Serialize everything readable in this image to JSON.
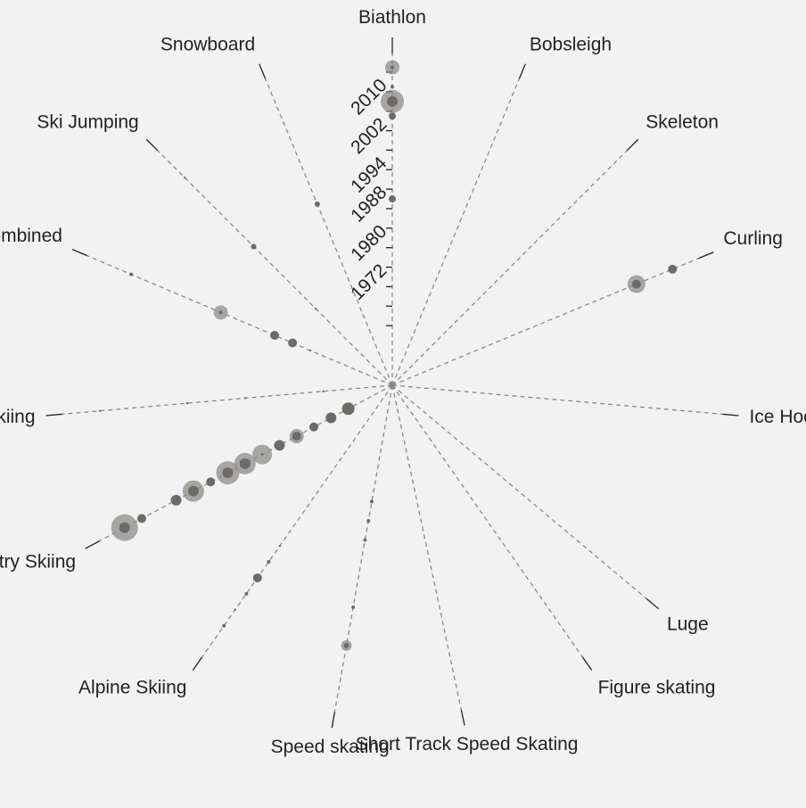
{
  "chart_data": {
    "type": "scatter",
    "layout": "radial",
    "year_axis": {
      "ticks": [
        1972,
        1980,
        1988,
        1994,
        2002,
        2010
      ],
      "range": [
        1956,
        2014
      ]
    },
    "sports": [
      {
        "name": "Biathlon",
        "angle": 0,
        "points": [
          {
            "year": 1976,
            "size": 1
          },
          {
            "year": 1986,
            "size": 4
          },
          {
            "year": 2003,
            "size": 4
          },
          {
            "year": 2006,
            "size": 6,
            "halo": 7
          },
          {
            "year": 2009,
            "size": 2
          },
          {
            "year": 2013,
            "size": 2,
            "halo": 6
          }
        ]
      },
      {
        "name": "Bobsleigh",
        "angle": 22.5,
        "points": []
      },
      {
        "name": "Skeleton",
        "angle": 45,
        "points": []
      },
      {
        "name": "Curling",
        "angle": 67.5,
        "points": [
          {
            "year": 2010,
            "size": 5
          },
          {
            "year": 2002,
            "size": 5,
            "halo": 5
          }
        ]
      },
      {
        "name": "Ice Hockey",
        "angle": 95,
        "points": []
      },
      {
        "name": "Luge",
        "angle": 130,
        "points": []
      },
      {
        "name": "Figure skating",
        "angle": 145,
        "points": []
      },
      {
        "name": "Short Track Speed Skating",
        "angle": 168,
        "points": []
      },
      {
        "name": "Speed skating",
        "angle": 190,
        "points": [
          {
            "year": 1972,
            "size": 2
          },
          {
            "year": 1976,
            "size": 2
          },
          {
            "year": 1980,
            "size": 2
          },
          {
            "year": 1994,
            "size": 2
          },
          {
            "year": 2002,
            "size": 3,
            "halo": 3
          }
        ]
      },
      {
        "name": "Alpine Skiing",
        "angle": 215,
        "points": [
          {
            "year": 1988,
            "size": 1
          },
          {
            "year": 1992,
            "size": 2
          },
          {
            "year": 1996,
            "size": 5
          },
          {
            "year": 2000,
            "size": 2
          },
          {
            "year": 2004,
            "size": 1
          },
          {
            "year": 2008,
            "size": 2
          }
        ]
      },
      {
        "name": "Cross Country Skiing",
        "angle": 242,
        "points": [
          {
            "year": 1958,
            "size": 7
          },
          {
            "year": 1962,
            "size": 6
          },
          {
            "year": 1966,
            "size": 5
          },
          {
            "year": 1970,
            "size": 5,
            "halo": 3
          },
          {
            "year": 1974,
            "size": 6
          },
          {
            "year": 1978,
            "size": 1,
            "halo": 10
          },
          {
            "year": 1982,
            "size": 6,
            "halo": 6
          },
          {
            "year": 1986,
            "size": 6,
            "halo": 7
          },
          {
            "year": 1990,
            "size": 5
          },
          {
            "year": 1994,
            "size": 6,
            "halo": 6
          },
          {
            "year": 1998,
            "size": 6
          },
          {
            "year": 2006,
            "size": 5
          },
          {
            "year": 2010,
            "size": 6,
            "halo": 9
          }
        ]
      },
      {
        "name": "Skiing",
        "angle": 265,
        "points": [
          {
            "year": 1962,
            "size": 1
          },
          {
            "year": 1978,
            "size": 1
          },
          {
            "year": 1990,
            "size": 1
          },
          {
            "year": 2008,
            "size": 1
          }
        ]
      },
      {
        "name": "Nordic Combined",
        "angle": 293,
        "points": [
          {
            "year": 1966,
            "size": 1
          },
          {
            "year": 1970,
            "size": 5
          },
          {
            "year": 1974,
            "size": 5
          },
          {
            "year": 1986,
            "size": 2,
            "halo": 6
          },
          {
            "year": 2006,
            "size": 2
          }
        ]
      },
      {
        "name": "Ski Jumping",
        "angle": 315,
        "points": [
          {
            "year": 1970,
            "size": 1
          },
          {
            "year": 1988,
            "size": 3
          },
          {
            "year": 2008,
            "size": 1
          }
        ]
      },
      {
        "name": "Snowboard",
        "angle": 337.5,
        "points": [
          {
            "year": 1988,
            "size": 3
          }
        ]
      }
    ]
  }
}
